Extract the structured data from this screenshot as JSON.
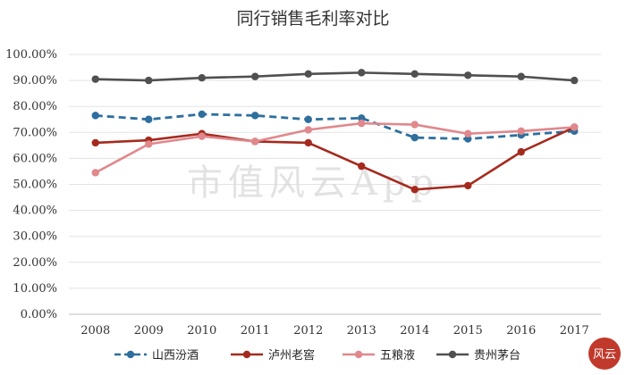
{
  "chart_data": {
    "type": "line",
    "title": "同行销售毛利率对比",
    "xlabel": "",
    "ylabel": "",
    "categories": [
      "2008",
      "2009",
      "2010",
      "2011",
      "2012",
      "2013",
      "2014",
      "2015",
      "2016",
      "2017"
    ],
    "ylim": [
      0,
      100
    ],
    "yticks": [
      "0.00%",
      "10.00%",
      "20.00%",
      "30.00%",
      "40.00%",
      "50.00%",
      "60.00%",
      "70.00%",
      "80.00%",
      "90.00%",
      "100.00%"
    ],
    "grid": true,
    "legend_position": "bottom",
    "series": [
      {
        "name": "山西汾酒",
        "color": "#2e6f9e",
        "style": "dashed",
        "values": [
          76.5,
          75,
          77,
          76.5,
          75,
          75.5,
          68,
          67.5,
          69,
          70.5
        ]
      },
      {
        "name": "泸州老窖",
        "color": "#a52a1e",
        "style": "solid",
        "values": [
          66,
          67,
          69.5,
          66.5,
          66,
          57,
          48,
          49.5,
          62.5,
          72
        ]
      },
      {
        "name": "五粮液",
        "color": "#e0888c",
        "style": "solid",
        "values": [
          54.5,
          65.5,
          68.5,
          66.5,
          71,
          73.5,
          73,
          69.5,
          70.5,
          72
        ]
      },
      {
        "name": "贵州茅台",
        "color": "#505050",
        "style": "solid",
        "values": [
          90.5,
          90,
          91,
          91.5,
          92.5,
          93,
          92.5,
          92,
          91.5,
          90
        ]
      }
    ],
    "watermark": "市值风云App",
    "seal": "风云"
  }
}
